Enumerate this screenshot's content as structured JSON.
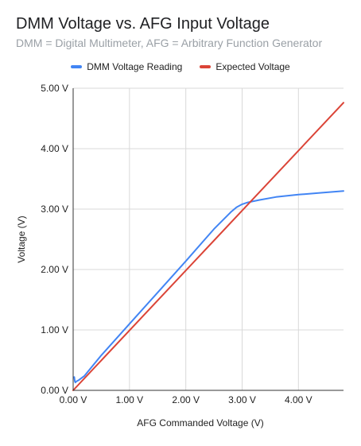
{
  "chart_data": {
    "type": "line",
    "title": "DMM Voltage vs. AFG Input Voltage",
    "subtitle": "DMM = Digital Multimeter, AFG = Arbitrary Function Generator",
    "xlabel": "AFG Commanded Voltage (V)",
    "ylabel": "Voltage (V)",
    "xlim": [
      0,
      4.8
    ],
    "ylim": [
      0,
      5
    ],
    "x_ticks": [
      0,
      1,
      2,
      3,
      4
    ],
    "x_tick_labels": [
      "0.00 V",
      "1.00 V",
      "2.00 V",
      "3.00 V",
      "4.00 V"
    ],
    "y_ticks": [
      0,
      1,
      2,
      3,
      4,
      5
    ],
    "y_tick_labels": [
      "0.00 V",
      "1.00 V",
      "2.00 V",
      "3.00 V",
      "4.00 V",
      "5.00 V"
    ],
    "grid": true,
    "legend_position": "top",
    "series": [
      {
        "name": "DMM Voltage Reading",
        "color": "#4285f4",
        "x": [
          0.02,
          0.03,
          0.04,
          0.06,
          0.1,
          0.2,
          0.5,
          1.0,
          1.5,
          2.0,
          2.5,
          2.8,
          2.9,
          3.0,
          3.1,
          3.3,
          3.6,
          4.0,
          4.4,
          4.8
        ],
        "y": [
          0.22,
          0.15,
          0.13,
          0.15,
          0.17,
          0.24,
          0.58,
          1.1,
          1.62,
          2.14,
          2.67,
          2.95,
          3.03,
          3.08,
          3.11,
          3.15,
          3.2,
          3.24,
          3.27,
          3.3
        ]
      },
      {
        "name": "Expected Voltage",
        "color": "#db4437",
        "x": [
          0,
          4.8
        ],
        "y": [
          0,
          4.76
        ]
      }
    ]
  }
}
